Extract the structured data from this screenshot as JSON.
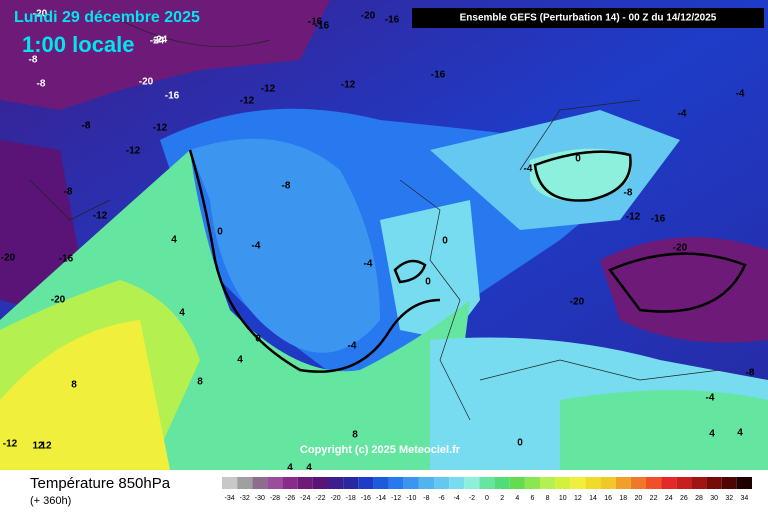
{
  "header": {
    "title": "Lundi 29 décembre 2025",
    "subtitle": "1:00 locale",
    "model": "Ensemble GEFS  (Perturbation 14)  -  00 Z du 14/12/2025"
  },
  "map": {
    "copyright": "Copyright (c) 2025 Meteociel.fr",
    "contour_labels": [
      -20,
      -24,
      -16,
      -16,
      -20,
      -16,
      -8,
      -24,
      -8,
      -20,
      -16,
      -12,
      -12,
      -12,
      -16,
      -12,
      -8,
      -12,
      -8,
      -12,
      -4,
      -4,
      -8,
      -12,
      -16,
      -20,
      -20,
      -20,
      -16,
      -20,
      -4,
      0,
      -8,
      0,
      -4,
      -4,
      0,
      4,
      4,
      4,
      8,
      8,
      8,
      4,
      4,
      -12,
      12,
      12,
      0,
      0,
      -4,
      -8,
      4,
      4,
      0,
      -4
    ]
  },
  "footer": {
    "title": "Température 850hPa",
    "lead": "(+ 360h)"
  },
  "legend": {
    "values": [
      -34,
      -32,
      -30,
      -28,
      -26,
      -24,
      -22,
      -20,
      -18,
      -16,
      -14,
      -12,
      -10,
      -8,
      -6,
      -4,
      -2,
      0,
      2,
      4,
      6,
      8,
      10,
      12,
      14,
      16,
      18,
      20,
      22,
      24,
      26,
      28,
      30,
      32,
      34
    ],
    "colors": [
      "#c8c8c8",
      "#a0a0a0",
      "#8c6e8c",
      "#9c4c9c",
      "#8a2a8a",
      "#6e1a78",
      "#5a1478",
      "#3c1e8c",
      "#2828a0",
      "#1e3cc8",
      "#1e5adc",
      "#2878f0",
      "#3c96f0",
      "#50b4f0",
      "#64c8f0",
      "#78dcf0",
      "#8cf0dc",
      "#64e6a0",
      "#50dc78",
      "#64dc50",
      "#8ce650",
      "#b4f050",
      "#d2f03c",
      "#f0f03c",
      "#f0dc28",
      "#f0c828",
      "#f0a028",
      "#f07828",
      "#f05028",
      "#e62828",
      "#c81e1e",
      "#a01414",
      "#780a0a",
      "#500505",
      "#1e0000"
    ]
  }
}
